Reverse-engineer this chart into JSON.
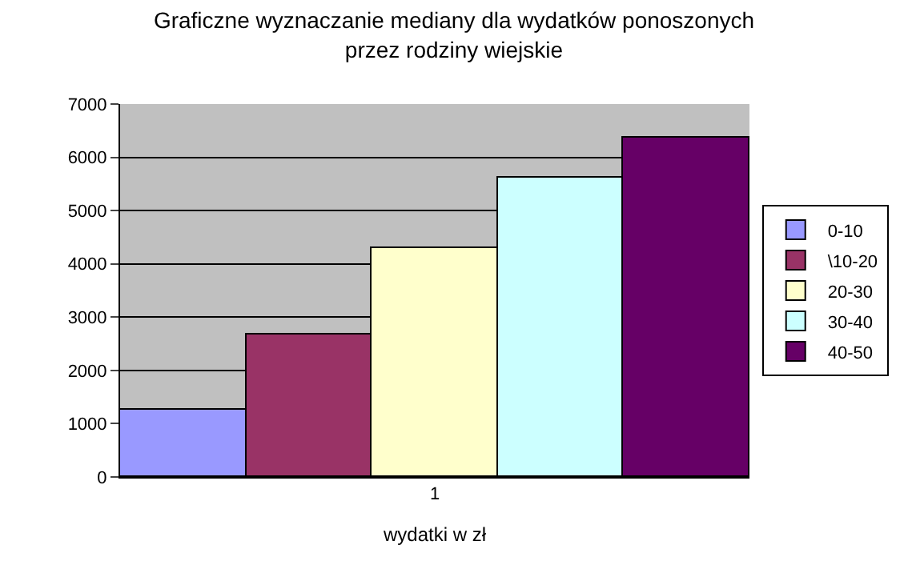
{
  "chart_data": {
    "type": "bar",
    "title": "Graficzne wyznaczanie mediany dla wydatków ponoszonych\nprzez rodziny wiejskie",
    "xlabel": "wydatki w zł",
    "categories": [
      "1"
    ],
    "series": [
      {
        "name": "0-10",
        "color": "#9999ff",
        "values": [
          1270
        ]
      },
      {
        "name": "\\10-20",
        "color": "#993366",
        "values": [
          2660
        ]
      },
      {
        "name": "20-30",
        "color": "#ffffcc",
        "values": [
          4290
        ]
      },
      {
        "name": "30-40",
        "color": "#ccffff",
        "values": [
          5610
        ]
      },
      {
        "name": "40-50",
        "color": "#660066",
        "values": [
          6370
        ]
      }
    ],
    "ylim": [
      0,
      7000
    ],
    "yticks": [
      0,
      1000,
      2000,
      3000,
      4000,
      5000,
      6000,
      7000
    ],
    "grid": "y",
    "legend": "right"
  }
}
